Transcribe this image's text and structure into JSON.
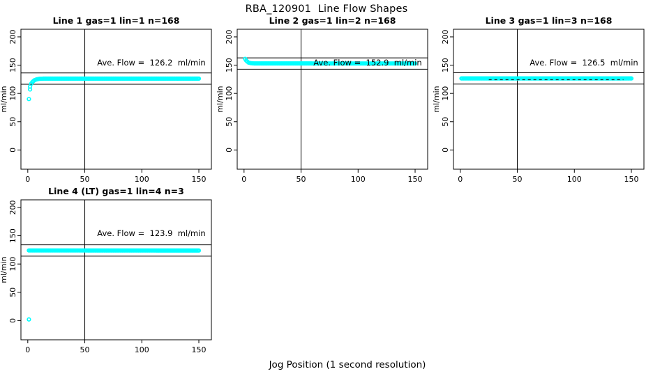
{
  "header": {
    "title": "RBA_120901  Line Flow Shapes"
  },
  "footer": {
    "xlabel": "Jog Position (1 second resolution)"
  },
  "colors": {
    "data": "#00FFFF",
    "axis": "#000000",
    "background": "#FFFFFF"
  },
  "chart_data": [
    {
      "type": "scatter",
      "title": "Line 1 gas=1 lin=1 n=168",
      "ylabel": "ml/min",
      "x_ticks": [
        0,
        50,
        100,
        150
      ],
      "y_ticks": [
        0,
        50,
        100,
        150,
        200
      ],
      "xlim": [
        -6,
        161
      ],
      "ylim": [
        -34,
        213.5
      ],
      "vline_x": 50,
      "ref_upper": 136.2,
      "ref_lower": 116.2,
      "avg_flow": 126.2,
      "annotation": "Ave. Flow =  126.2  ml/min",
      "anchors": [
        [
          1,
          90
        ],
        [
          2,
          107
        ],
        [
          2,
          112
        ],
        [
          3,
          117
        ],
        [
          4,
          120
        ],
        [
          5,
          122
        ],
        [
          6,
          123.5
        ],
        [
          8,
          125
        ],
        [
          10,
          125.8
        ],
        [
          14,
          126.2
        ],
        [
          150,
          126.2
        ]
      ],
      "extra_points": []
    },
    {
      "type": "scatter",
      "title": "Line 2 gas=1 lin=2 n=168",
      "ylabel": "ml/min",
      "x_ticks": [
        0,
        50,
        100,
        150
      ],
      "y_ticks": [
        0,
        50,
        100,
        150,
        200
      ],
      "xlim": [
        -6,
        161
      ],
      "ylim": [
        -34,
        213.5
      ],
      "vline_x": 50,
      "ref_upper": 162.9,
      "ref_lower": 142.9,
      "avg_flow": 152.9,
      "annotation": "Ave. Flow =  152.9  ml/min",
      "anchors": [
        [
          1,
          161
        ],
        [
          2,
          158
        ],
        [
          3,
          156
        ],
        [
          4,
          154.5
        ],
        [
          6,
          153.5
        ],
        [
          9,
          153
        ],
        [
          150,
          152.9
        ]
      ],
      "extra_points": []
    },
    {
      "type": "scatter",
      "title": "Line 3 gas=1 lin=3 n=168",
      "ylabel": "ml/min",
      "x_ticks": [
        0,
        50,
        100,
        150
      ],
      "y_ticks": [
        0,
        50,
        100,
        150,
        200
      ],
      "xlim": [
        -6,
        161
      ],
      "ylim": [
        -34,
        213.5
      ],
      "vline_x": 50,
      "ref_upper": 136.5,
      "ref_lower": 116.5,
      "avg_flow": 126.5,
      "annotation": "Ave. Flow =  126.5  ml/min",
      "anchors": [
        [
          1,
          126.5
        ],
        [
          150,
          126.5
        ]
      ],
      "extra_points": [],
      "dash_overlay": {
        "y": 124.2,
        "from": 25,
        "to": 143
      }
    },
    {
      "type": "scatter",
      "title": "Line 4 (LT) gas=1 lin=4 n=3",
      "ylabel": "ml/min",
      "x_ticks": [
        0,
        50,
        100,
        150
      ],
      "y_ticks": [
        0,
        50,
        100,
        150,
        200
      ],
      "xlim": [
        -6,
        161
      ],
      "ylim": [
        -34,
        213.5
      ],
      "vline_x": 50,
      "ref_upper": 133.9,
      "ref_lower": 113.9,
      "avg_flow": 123.9,
      "annotation": "Ave. Flow =  123.9  ml/min",
      "anchors": [
        [
          1,
          124
        ],
        [
          150,
          123.9
        ]
      ],
      "extra_points": [
        [
          1,
          2
        ]
      ]
    }
  ]
}
